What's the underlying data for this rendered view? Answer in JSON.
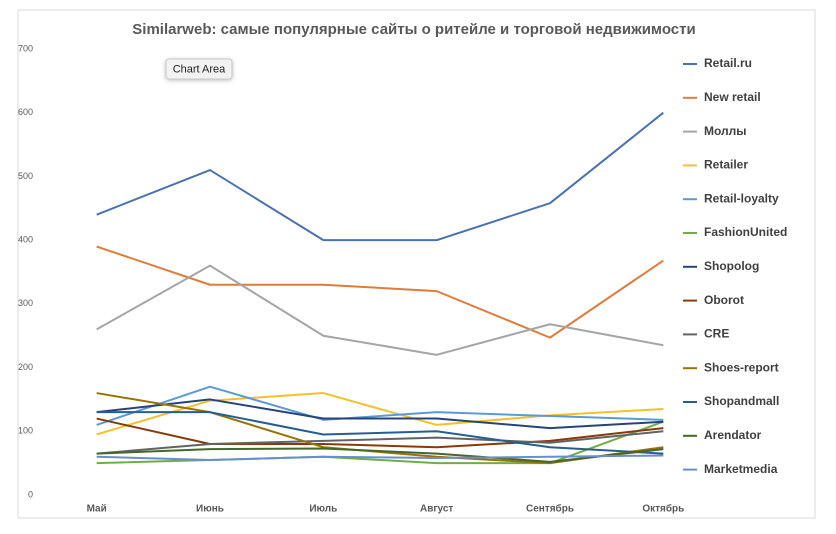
{
  "chart_data": {
    "type": "line",
    "title": "Similarweb: самые популярные сайты о ритейле и торговой недвижимости",
    "tooltip": "Chart Area",
    "categories": [
      "Май",
      "Июнь",
      "Июль",
      "Август",
      "Сентябрь",
      "Октябрь"
    ],
    "ylim": [
      0,
      700
    ],
    "yticks": [
      0,
      100,
      200,
      300,
      400,
      500,
      600,
      700
    ],
    "grid": false,
    "legend": "right",
    "series": [
      {
        "name": "Retail.ru",
        "color": "#4a72b0",
        "values": [
          440,
          510,
          400,
          400,
          458,
          600
        ]
      },
      {
        "name": "New retail",
        "color": "#e07b39",
        "values": [
          390,
          330,
          330,
          320,
          247,
          368
        ]
      },
      {
        "name": "Моллы",
        "color": "#a5a5a5",
        "values": [
          260,
          360,
          250,
          220,
          268,
          235
        ]
      },
      {
        "name": "Retailer",
        "color": "#f5c02c",
        "values": [
          95,
          148,
          160,
          110,
          125,
          135
        ]
      },
      {
        "name": "Retail-loyalty",
        "color": "#5b9bd5",
        "values": [
          110,
          170,
          118,
          130,
          124,
          118
        ]
      },
      {
        "name": "FashionUnited",
        "color": "#70ad47",
        "values": [
          50,
          55,
          60,
          50,
          50,
          115
        ]
      },
      {
        "name": "Shopolog",
        "color": "#264478",
        "values": [
          130,
          150,
          120,
          120,
          105,
          115
        ]
      },
      {
        "name": "Oborot",
        "color": "#843c0c",
        "values": [
          120,
          80,
          80,
          75,
          85,
          105
        ]
      },
      {
        "name": "CRE",
        "color": "#636363",
        "values": [
          65,
          80,
          85,
          90,
          82,
          100
        ]
      },
      {
        "name": "Shoes-report",
        "color": "#997300",
        "values": [
          160,
          130,
          75,
          60,
          50,
          75
        ]
      },
      {
        "name": "Shopandmall",
        "color": "#255e91",
        "values": [
          130,
          130,
          95,
          100,
          75,
          65
        ]
      },
      {
        "name": "Arendator",
        "color": "#43682b",
        "values": [
          65,
          72,
          73,
          65,
          52,
          72
        ]
      },
      {
        "name": "Marketmedia",
        "color": "#698ed0",
        "values": [
          60,
          55,
          60,
          58,
          60,
          62
        ]
      }
    ]
  }
}
